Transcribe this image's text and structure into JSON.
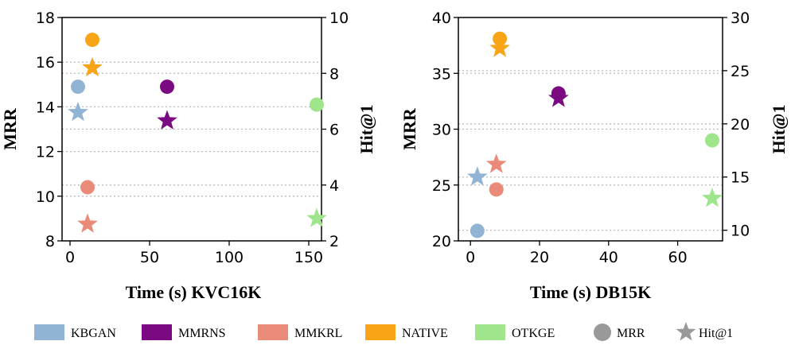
{
  "colors": {
    "KBGAN": "#92b4d4",
    "MMRNS": "#7b0a82",
    "MMKRL": "#ea8b7a",
    "NATIVE": "#f8a417",
    "OTKGE": "#9ee58c",
    "grey": "#999999"
  },
  "legend": [
    {
      "label": "KBGAN",
      "kind": "swatch",
      "color_key": "KBGAN"
    },
    {
      "label": "MMRNS",
      "kind": "swatch",
      "color_key": "MMRNS"
    },
    {
      "label": "MMKRL",
      "kind": "swatch",
      "color_key": "MMKRL"
    },
    {
      "label": "NATIVE",
      "kind": "swatch",
      "color_key": "NATIVE"
    },
    {
      "label": "OTKGE",
      "kind": "swatch",
      "color_key": "OTKGE"
    },
    {
      "label": "MRR",
      "kind": "circle",
      "color_key": "grey"
    },
    {
      "label": "Hit@1",
      "kind": "star",
      "color_key": "grey"
    }
  ],
  "chart_data": [
    {
      "type": "scatter",
      "xlabel": "Time (s)  KVC16K",
      "ylabel_left": "MRR",
      "ylabel_right": "Hit@1",
      "xlim": [
        -5,
        158
      ],
      "ylim_left": [
        8,
        18
      ],
      "ylim_right": [
        2,
        10
      ],
      "xticks": [
        0,
        50,
        100,
        150
      ],
      "yticks_left": [
        8,
        10,
        12,
        14,
        16,
        18
      ],
      "yticks_right": [
        2,
        4,
        6,
        8,
        10
      ],
      "grid": "dotted horizontal at right-axis ticks",
      "series": [
        {
          "name": "KBGAN",
          "mrr": {
            "x": 5,
            "y": 14.9
          },
          "hit1": {
            "x": 5,
            "y": 6.6
          }
        },
        {
          "name": "MMRNS",
          "mrr": {
            "x": 61,
            "y": 14.9
          },
          "hit1": {
            "x": 61,
            "y": 6.3
          }
        },
        {
          "name": "MMKRL",
          "mrr": {
            "x": 11,
            "y": 10.4
          },
          "hit1": {
            "x": 11,
            "y": 2.6
          }
        },
        {
          "name": "NATIVE",
          "mrr": {
            "x": 14,
            "y": 17.0
          },
          "hit1": {
            "x": 14,
            "y": 8.2
          }
        },
        {
          "name": "OTKGE",
          "mrr": {
            "x": 155,
            "y": 14.1
          },
          "hit1": {
            "x": 155,
            "y": 2.8
          }
        }
      ]
    },
    {
      "type": "scatter",
      "xlabel": "Time (s)  DB15K",
      "ylabel_left": "MRR",
      "ylabel_right": "Hit@1",
      "xlim": [
        -3.5,
        73
      ],
      "ylim_left": [
        20,
        40
      ],
      "ylim_right": [
        9,
        30
      ],
      "xticks": [
        0,
        20,
        40,
        60
      ],
      "yticks_left": [
        20,
        25,
        30,
        35,
        40
      ],
      "yticks_right": [
        10,
        15,
        20,
        25,
        30
      ],
      "grid": "dotted horizontal at right-axis ticks",
      "series": [
        {
          "name": "KBGAN",
          "mrr": {
            "x": 2,
            "y": 20.9
          },
          "hit1": {
            "x": 2,
            "y": 15.0
          }
        },
        {
          "name": "MMRNS",
          "mrr": {
            "x": 25.5,
            "y": 33.2
          },
          "hit1": {
            "x": 25.5,
            "y": 22.4
          }
        },
        {
          "name": "MMKRL",
          "mrr": {
            "x": 7.5,
            "y": 24.6
          },
          "hit1": {
            "x": 7.5,
            "y": 16.2
          }
        },
        {
          "name": "NATIVE",
          "mrr": {
            "x": 8.5,
            "y": 38.1
          },
          "hit1": {
            "x": 8.5,
            "y": 27.1
          }
        },
        {
          "name": "OTKGE",
          "mrr": {
            "x": 70,
            "y": 29.0
          },
          "hit1": {
            "x": 70,
            "y": 13.0
          }
        }
      ]
    }
  ]
}
